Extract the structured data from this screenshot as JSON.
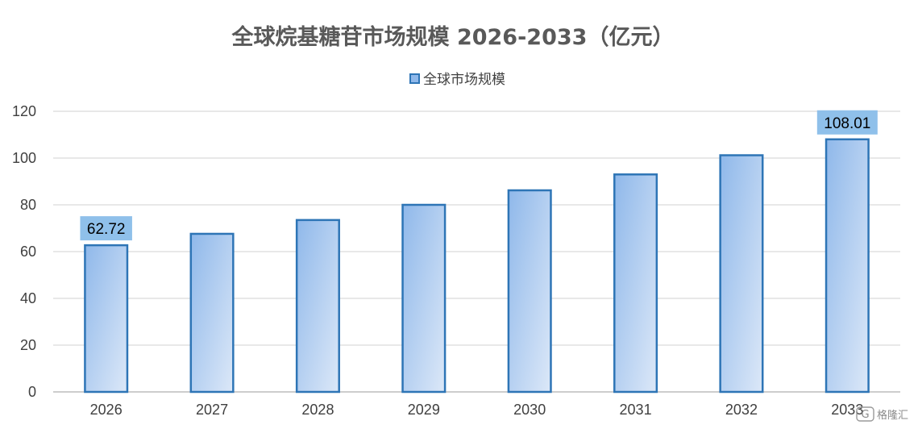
{
  "chart_data": {
    "type": "bar",
    "title": "全球烷基糖苷市场规模 2026-2033（亿元）",
    "xlabel": "",
    "ylabel": "",
    "categories": [
      "2026",
      "2027",
      "2028",
      "2029",
      "2030",
      "2031",
      "2032",
      "2033"
    ],
    "series": [
      {
        "name": "全球市场规模",
        "values": [
          62.72,
          67.6,
          73.5,
          80.0,
          86.2,
          93.0,
          101.2,
          108.01
        ],
        "data_labels": {
          "0": "62.72",
          "7": "108.01"
        }
      }
    ],
    "ylim": [
      0,
      120
    ],
    "yticks": [
      "0",
      "20",
      "40",
      "60",
      "80",
      "100",
      "120"
    ],
    "grid": true,
    "legend_position": "top",
    "colors": {
      "bar_fill_start": "#8fb8ea",
      "bar_fill_end": "#dce8f8",
      "bar_border": "#2e75b6",
      "label_bg": "#8fc0ea",
      "gridline": "#d9d9d9"
    }
  },
  "watermark": {
    "text": "格隆汇",
    "icon": "gelonghui-logo-icon"
  }
}
